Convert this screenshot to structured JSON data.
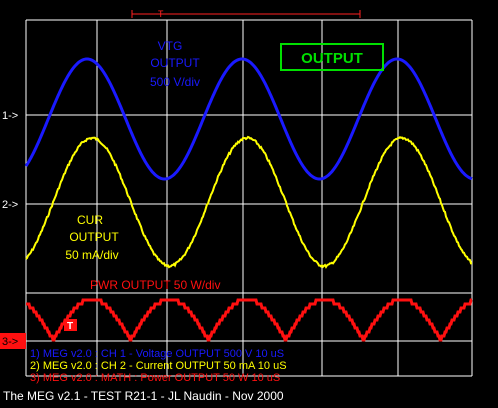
{
  "colors": {
    "ch1": "#1a1aff",
    "ch2": "#ffff00",
    "ch3": "#ff1010",
    "grid": "#ffffff",
    "output_label": "#00e000",
    "background": "#000000"
  },
  "markers": {
    "ch1": "1->",
    "ch2": "2->",
    "ch3": "3->",
    "trigger": "T"
  },
  "labels": {
    "vtg": [
      "VTG",
      "OUTPUT",
      "500 V/div"
    ],
    "cur": [
      "CUR",
      "OUTPUT",
      "50 mA/div"
    ],
    "pwr": "PWR OUTPUT 50 W/div",
    "output_box": "OUTPUT"
  },
  "status_lines": [
    "1) MEG v2.0 : CH 1 - Voltage OUTPUT 500  V 10 uS",
    "2) MEG v2.0 : CH 2 - Current OUTPUT 50 mA 10 uS",
    "3) MEG v2.0 : MATH : Power OUTPUT 50  W 10 uS"
  ],
  "footer": "The MEG v2.1 - TEST R21-1 - JL Naudin - Nov 2000"
}
